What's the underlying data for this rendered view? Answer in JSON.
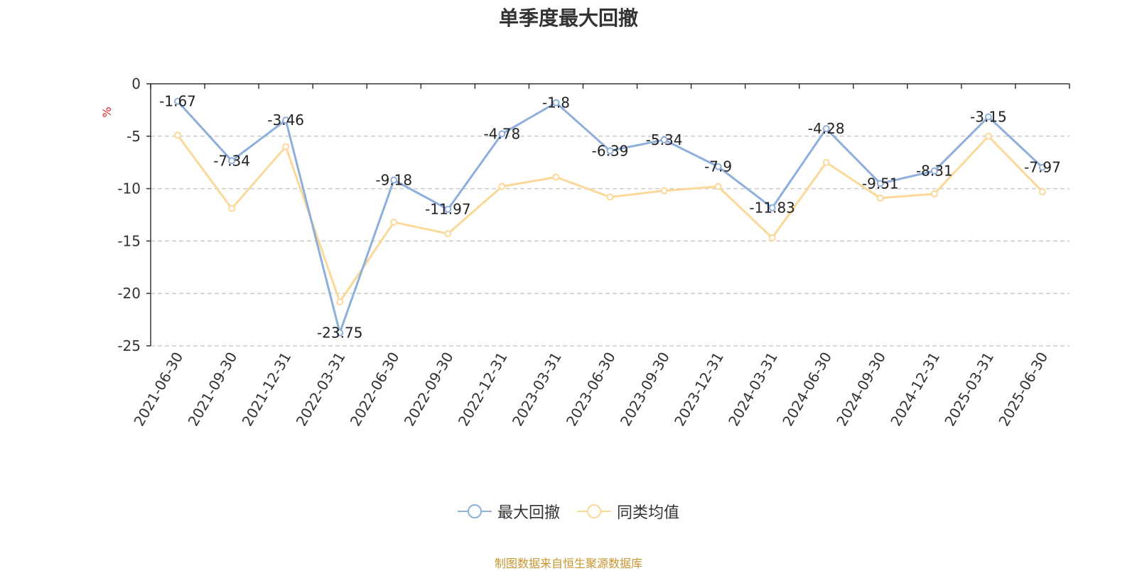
{
  "chart_data": {
    "type": "line",
    "title": "单季度最大回撤",
    "ylabel": "%",
    "ylim": [
      -25,
      0
    ],
    "yticks": [
      0,
      -5,
      -10,
      -15,
      -20,
      -25
    ],
    "grid": true,
    "legend_position": "bottom",
    "categories": [
      "2021-06-30",
      "2021-09-30",
      "2021-12-31",
      "2022-03-31",
      "2022-06-30",
      "2022-09-30",
      "2022-12-31",
      "2023-03-31",
      "2023-06-30",
      "2023-09-30",
      "2023-12-31",
      "2024-03-31",
      "2024-06-30",
      "2024-09-30",
      "2024-12-31",
      "2025-03-31",
      "2025-06-30"
    ],
    "series": [
      {
        "name": "最大回撤",
        "color": "#8eaedb",
        "values": [
          -1.67,
          -7.34,
          -3.46,
          -23.75,
          -9.18,
          -11.97,
          -4.78,
          -1.8,
          -6.39,
          -5.34,
          -7.9,
          -11.83,
          -4.28,
          -9.51,
          -8.31,
          -3.15,
          -7.97
        ],
        "labels": [
          "-1.67",
          "-7.34",
          "-3.46",
          "-23.75",
          "-9.18",
          "-11.97",
          "-4.78",
          "-1.8",
          "-6.39",
          "-5.34",
          "-7.9",
          "-11.83",
          "-4.28",
          "-9.51",
          "-8.31",
          "-3.15",
          "-7.97"
        ]
      },
      {
        "name": "同类均值",
        "color": "#fcd898",
        "values": [
          -4.9,
          -11.9,
          -6.0,
          -20.8,
          -13.2,
          -14.3,
          -9.8,
          -8.9,
          -10.8,
          -10.2,
          -9.8,
          -14.7,
          -7.5,
          -10.9,
          -10.5,
          -5.0,
          -10.3
        ]
      }
    ]
  },
  "footer": "制图数据来自恒生聚源数据库"
}
